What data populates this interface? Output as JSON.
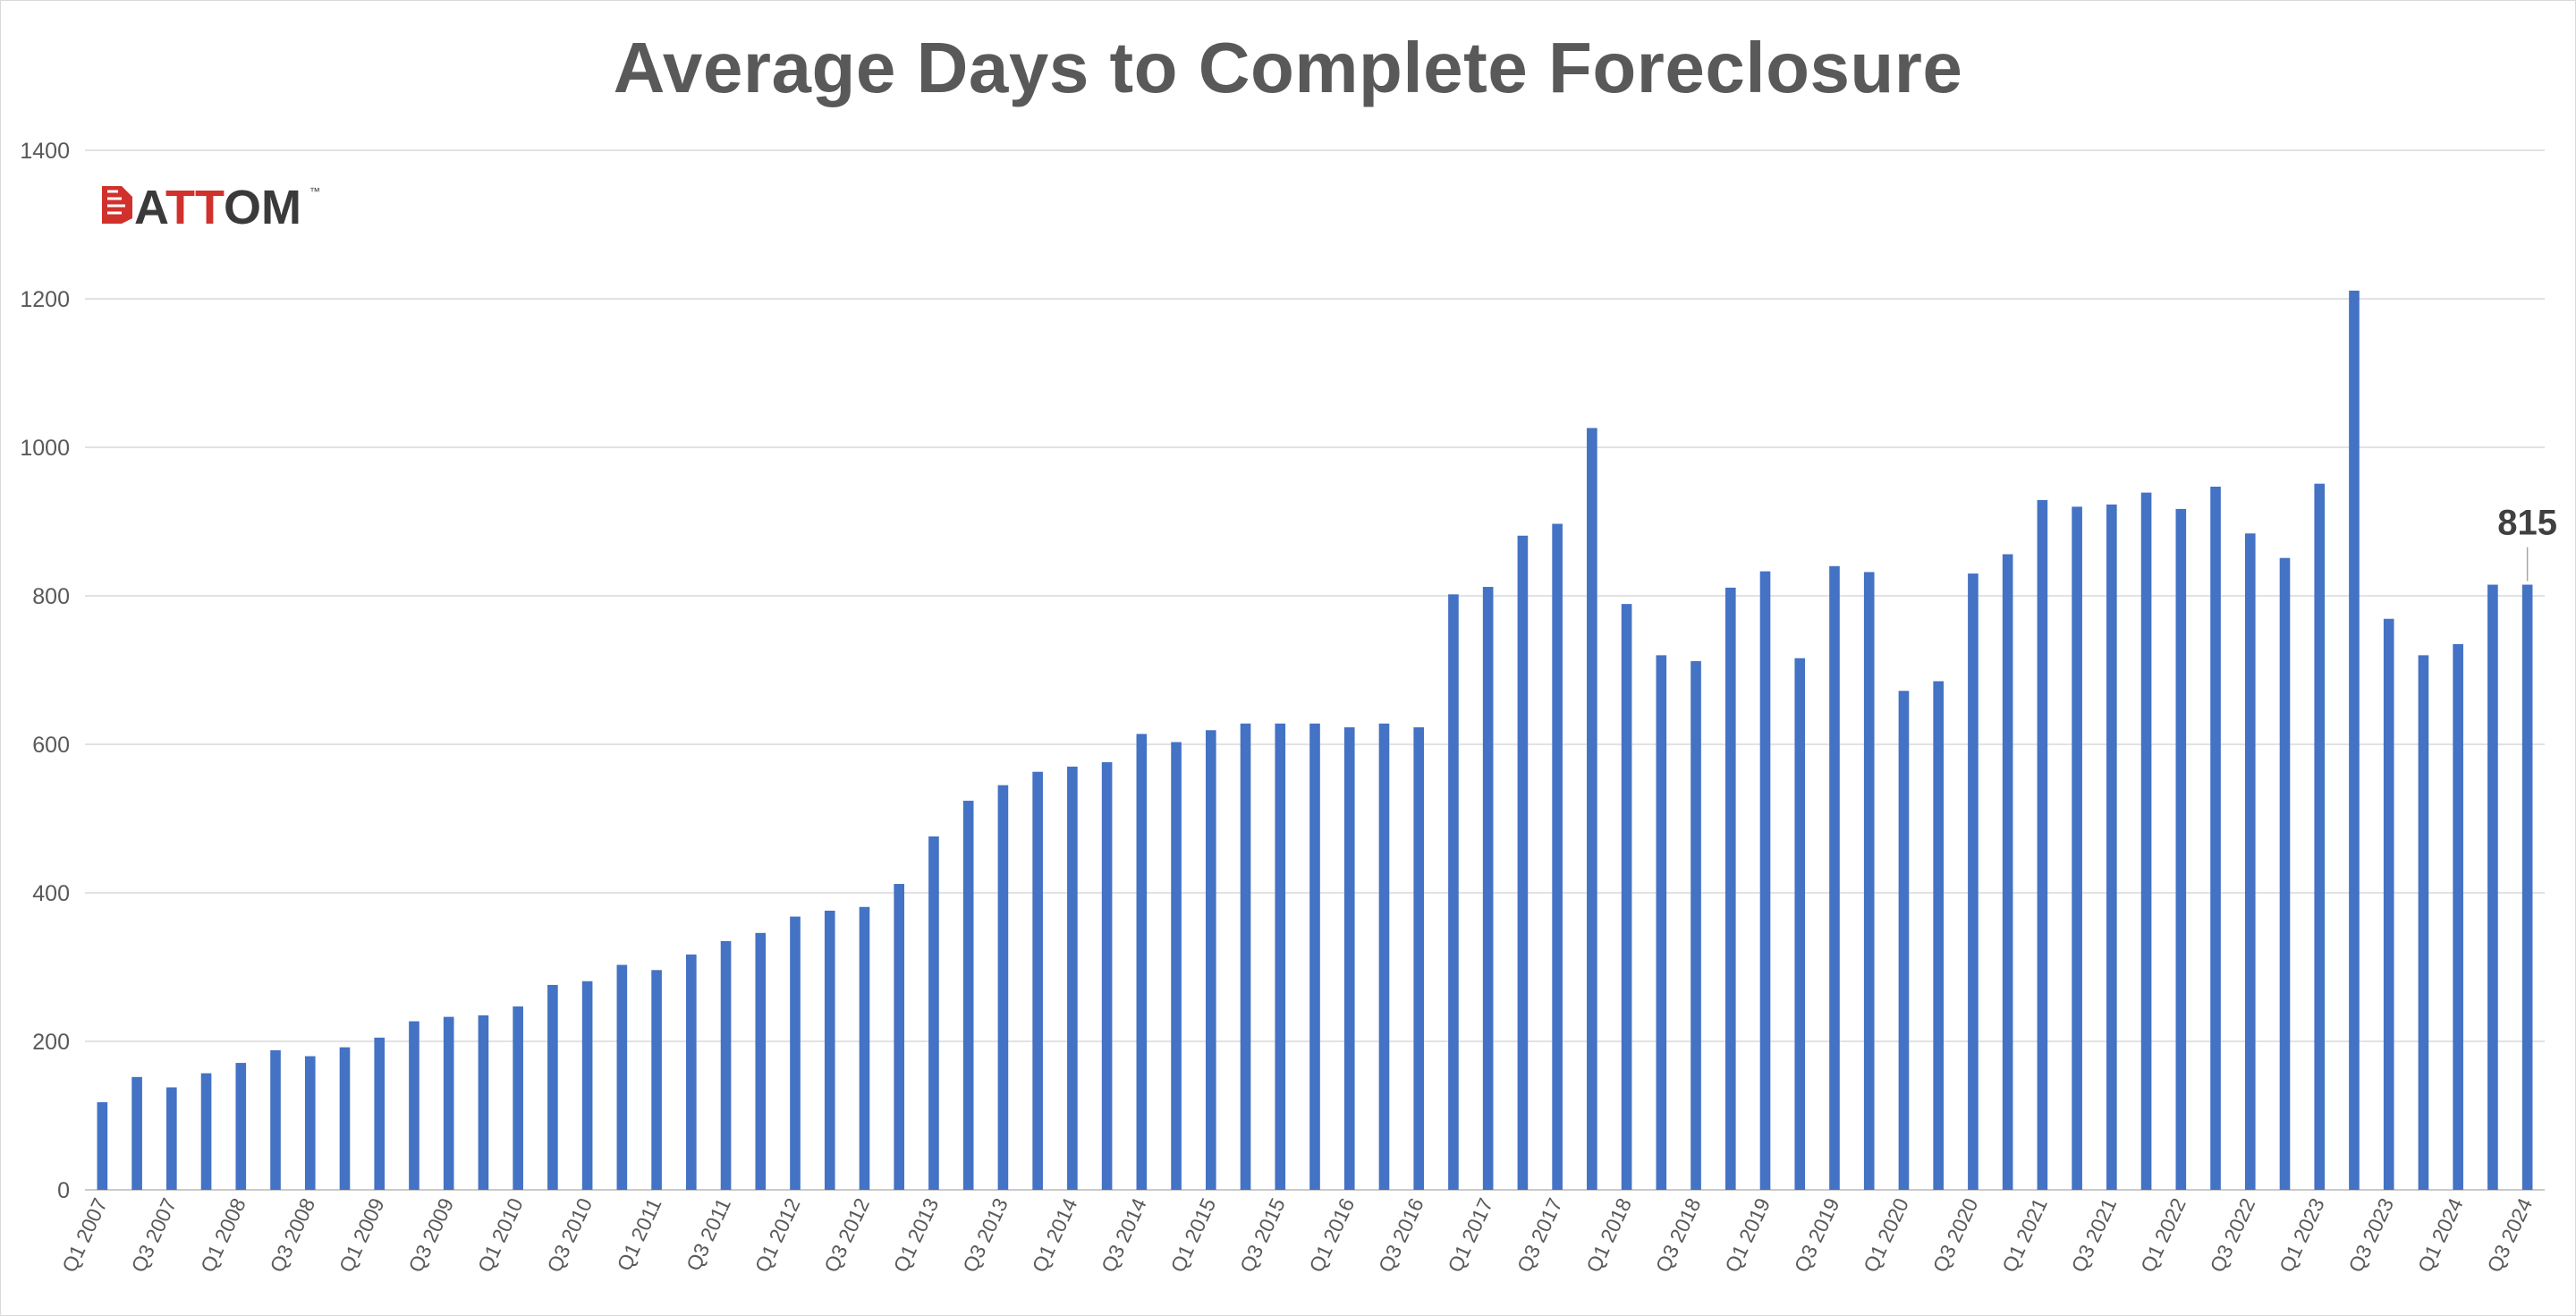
{
  "chart_data": {
    "type": "bar",
    "title": "Average Days to Complete Foreclosure",
    "xlabel": "",
    "ylabel": "",
    "ylim": [
      0,
      1400
    ],
    "yticks": [
      0,
      200,
      400,
      600,
      800,
      1000,
      1200,
      1400
    ],
    "grid": true,
    "legend": "none",
    "bar_color": "#4472C4",
    "categories": [
      "Q1 2007",
      "Q2 2007",
      "Q3 2007",
      "Q4 2007",
      "Q1 2008",
      "Q2 2008",
      "Q3 2008",
      "Q4 2008",
      "Q1 2009",
      "Q2 2009",
      "Q3 2009",
      "Q4 2009",
      "Q1 2010",
      "Q2 2010",
      "Q3 2010",
      "Q4 2010",
      "Q1 2011",
      "Q2 2011",
      "Q3 2011",
      "Q4 2011",
      "Q1 2012",
      "Q2 2012",
      "Q3 2012",
      "Q4 2012",
      "Q1 2013",
      "Q2 2013",
      "Q3 2013",
      "Q4 2013",
      "Q1 2014",
      "Q2 2014",
      "Q3 2014",
      "Q4 2014",
      "Q1 2015",
      "Q2 2015",
      "Q3 2015",
      "Q4 2015",
      "Q1 2016",
      "Q2 2016",
      "Q3 2016",
      "Q4 2016",
      "Q1 2017",
      "Q2 2017",
      "Q3 2017",
      "Q4 2017",
      "Q1 2018",
      "Q2 2018",
      "Q3 2018",
      "Q4 2018",
      "Q1 2019",
      "Q2 2019",
      "Q3 2019",
      "Q4 2019",
      "Q1 2020",
      "Q2 2020",
      "Q3 2020",
      "Q4 2020",
      "Q1 2021",
      "Q2 2021",
      "Q3 2021",
      "Q4 2021",
      "Q1 2022",
      "Q2 2022",
      "Q3 2022",
      "Q4 2022",
      "Q1 2023",
      "Q2 2023",
      "Q3 2023",
      "Q4 2023",
      "Q1 2024",
      "Q2 2024",
      "Q3 2024"
    ],
    "tick_labels": [
      "Q1 2007",
      "Q3 2007",
      "Q1 2008",
      "Q3 2008",
      "Q1 2009",
      "Q3 2009",
      "Q1 2010",
      "Q3 2010",
      "Q1 2011",
      "Q3 2011",
      "Q1 2012",
      "Q3 2012",
      "Q1 2013",
      "Q3 2013",
      "Q1 2014",
      "Q3 2014",
      "Q1 2015",
      "Q3 2015",
      "Q1 2016",
      "Q3 2016",
      "Q1 2017",
      "Q3 2017",
      "Q1 2018",
      "Q3 2018",
      "Q1 2019",
      "Q3 2019",
      "Q1 2020",
      "Q3 2020",
      "Q1 2021",
      "Q3 2021",
      "Q1 2022",
      "Q3 2022",
      "Q1 2023",
      "Q3 2023",
      "Q1 2024",
      "Q3 2024"
    ],
    "values": [
      118,
      152,
      138,
      157,
      171,
      188,
      180,
      192,
      205,
      227,
      233,
      235,
      247,
      276,
      281,
      303,
      296,
      317,
      335,
      346,
      368,
      376,
      381,
      412,
      476,
      524,
      545,
      563,
      570,
      576,
      614,
      603,
      619,
      628,
      628,
      628,
      623,
      628,
      623,
      802,
      812,
      881,
      897,
      1026,
      789,
      720,
      712,
      811,
      833,
      716,
      840,
      832,
      672,
      685,
      830,
      856,
      929,
      920,
      923,
      939,
      917,
      947,
      884,
      851,
      951,
      1211,
      769,
      720,
      735,
      815,
      815
    ],
    "annotations": [
      {
        "category": "Q3 2024",
        "label": "815"
      }
    ]
  },
  "logo": {
    "text": "ATTOM",
    "tm": "™",
    "color_primary": "#d0312d",
    "color_text": "#3a3a3a"
  }
}
